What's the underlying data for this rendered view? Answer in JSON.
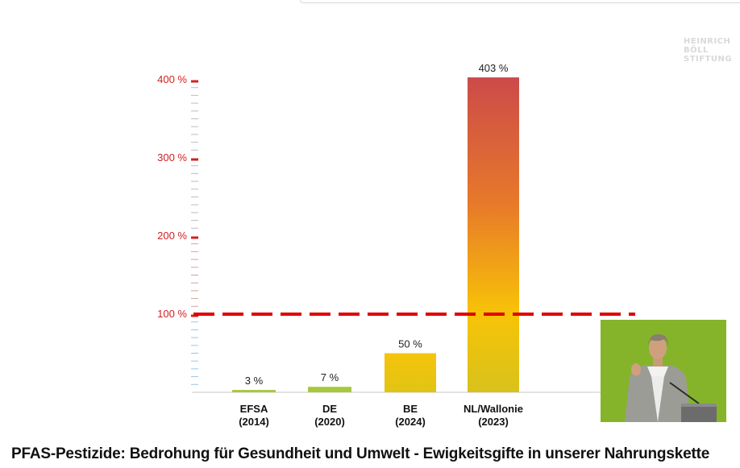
{
  "logo": {
    "line1": "HEINRICH",
    "line2": "BÖLL",
    "line3": "STIFTUNG"
  },
  "caption": "PFAS-Pestizide: Bedrohung für Gesundheit und Umwelt - Ewigkeitsgifte in unserer Nahrungskette",
  "chart_data": {
    "type": "bar",
    "title": "",
    "xlabel": "",
    "ylabel": "",
    "ylim": [
      0,
      400
    ],
    "yticks": [
      100,
      200,
      300,
      400
    ],
    "ytick_labels": [
      "100 %",
      "200 %",
      "300 %",
      "400 %"
    ],
    "reference_line": {
      "value": 100,
      "style": "dashed",
      "color": "#e00000"
    },
    "categories": [
      {
        "name": "EFSA",
        "year": "(2014)"
      },
      {
        "name": "DE",
        "year": "(2020)"
      },
      {
        "name": "BE",
        "year": "(2024)"
      },
      {
        "name": "NL/Wallonie",
        "year": "(2023)"
      }
    ],
    "values": [
      3,
      7,
      50,
      403
    ],
    "value_labels": [
      "3 %",
      "7 %",
      "50 %",
      "403 %"
    ],
    "colors": {
      "low": "#a8c83c",
      "mid": "#f5c20a",
      "high": "#cc4a4a",
      "axis_label": "#d32020"
    }
  }
}
